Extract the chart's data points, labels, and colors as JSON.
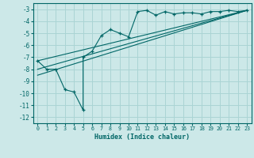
{
  "title": "",
  "xlabel": "Humidex (Indice chaleur)",
  "ylabel": "",
  "bg_color": "#cce8e8",
  "grid_color": "#aad4d4",
  "line_color": "#006666",
  "xlim": [
    -0.5,
    23.5
  ],
  "ylim": [
    -12.5,
    -2.5
  ],
  "xticks": [
    0,
    1,
    2,
    3,
    4,
    5,
    6,
    7,
    8,
    9,
    10,
    11,
    12,
    13,
    14,
    15,
    16,
    17,
    18,
    19,
    20,
    21,
    22,
    23
  ],
  "yticks": [
    -3,
    -4,
    -5,
    -6,
    -7,
    -8,
    -9,
    -10,
    -11,
    -12
  ],
  "curve1_x": [
    0,
    1,
    2,
    3,
    4,
    5,
    5,
    6,
    7,
    8,
    9,
    10,
    11,
    12,
    13,
    14,
    15,
    16,
    17,
    18,
    19,
    20,
    21,
    22,
    23
  ],
  "curve1_y": [
    -7.3,
    -8.0,
    -8.0,
    -9.7,
    -9.9,
    -11.4,
    -7.0,
    -6.5,
    -5.2,
    -4.7,
    -5.0,
    -5.3,
    -3.2,
    -3.1,
    -3.5,
    -3.2,
    -3.4,
    -3.3,
    -3.3,
    -3.4,
    -3.2,
    -3.2,
    -3.1,
    -3.2,
    -3.1
  ],
  "line1_x": [
    0,
    23
  ],
  "line1_y": [
    -8.0,
    -3.1
  ],
  "line2_x": [
    0,
    23
  ],
  "line2_y": [
    -7.3,
    -3.1
  ],
  "line3_x": [
    0,
    23
  ],
  "line3_y": [
    -8.5,
    -3.1
  ]
}
